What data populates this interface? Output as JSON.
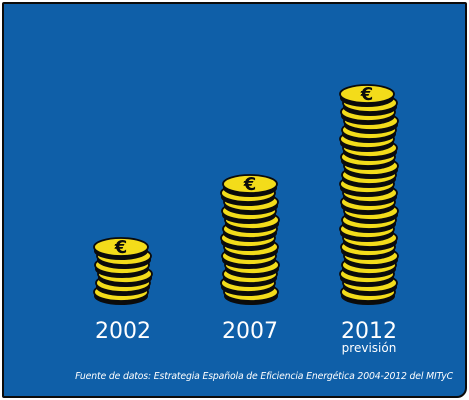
{
  "chart_data": {
    "type": "bar",
    "categories": [
      "2002",
      "2007",
      "2012"
    ],
    "subtitles": [
      "",
      "",
      "previsión"
    ],
    "values": [
      6,
      13,
      23
    ],
    "unit": "€",
    "source": "Fuente de datos: Estrategia Española de Eficiencia Energética 2004-2012 del MITyC"
  },
  "colors": {
    "background": "#0f5fa8",
    "coin_fill": "#f3dc1a",
    "coin_edge": "#0b0b0b",
    "text": "#ffffff"
  }
}
